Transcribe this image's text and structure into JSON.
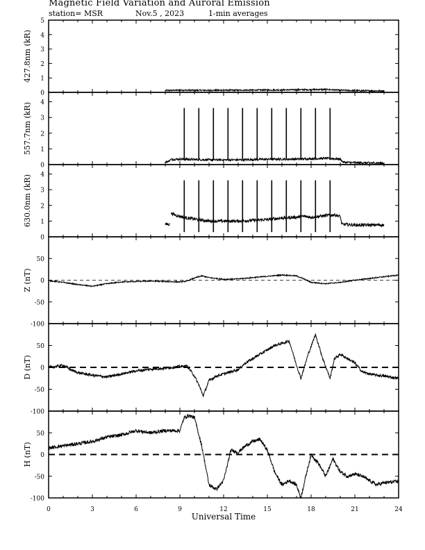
{
  "header": {
    "title": "Magnetic Field Variation and Auroral Emission",
    "station": "station= MSR",
    "date": "Nov.5  , 2023",
    "averaging": "1-min averages"
  },
  "chart_data": [
    {
      "type": "line",
      "id": "p4278",
      "ylabel": "427.8nm (kR)",
      "ylim": [
        0,
        5
      ],
      "yticks": [
        0,
        1,
        2,
        3,
        4,
        5
      ],
      "xlim": [
        0,
        24
      ],
      "grid": false,
      "segments": [
        {
          "x": [
            8.0,
            9.0,
            11.0,
            13.0,
            15.0,
            17.0,
            19.0,
            20.0,
            21.0,
            23.0
          ],
          "y": [
            0.13,
            0.15,
            0.14,
            0.15,
            0.16,
            0.18,
            0.2,
            0.15,
            0.12,
            0.1
          ],
          "noise": 0.05
        }
      ]
    },
    {
      "type": "line",
      "id": "p5577",
      "ylabel": "557.7nm (kR)",
      "ylim": [
        0,
        4.6
      ],
      "yticks": [
        0,
        1,
        2,
        3,
        4
      ],
      "xlim": [
        0,
        24
      ],
      "grid": false,
      "segments": [
        {
          "x": [
            8.0,
            8.2,
            8.4,
            9.0,
            11.0,
            13.0,
            15.0,
            17.0,
            19.0,
            20.0,
            20.2,
            21.0,
            23.0
          ],
          "y": [
            0.15,
            0.2,
            0.33,
            0.35,
            0.3,
            0.3,
            0.34,
            0.35,
            0.4,
            0.35,
            0.15,
            0.12,
            0.1
          ],
          "noise": 0.07
        }
      ],
      "spikes": {
        "x": [
          9.3,
          10.3,
          11.3,
          12.3,
          13.3,
          14.3,
          15.3,
          16.3,
          17.3,
          18.3,
          19.3
        ],
        "peak": 3.6
      }
    },
    {
      "type": "line",
      "id": "p6300",
      "ylabel": "630.0nm (kR)",
      "ylim": [
        0,
        4.6
      ],
      "yticks": [
        0,
        1,
        2,
        3,
        4
      ],
      "xlim": [
        0,
        24
      ],
      "grid": false,
      "segments": [
        {
          "x": [
            8.0,
            8.3
          ],
          "y": [
            0.8,
            0.8
          ],
          "noise": 0.1
        },
        {
          "x": [
            8.4,
            8.8,
            9.5,
            11.0,
            13.0,
            14.0,
            15.0,
            16.0,
            17.0,
            17.5,
            18.0,
            19.0,
            19.6,
            20.0,
            20.1,
            21.0,
            23.0
          ],
          "y": [
            1.5,
            1.35,
            1.2,
            1.0,
            1.0,
            1.05,
            1.1,
            1.2,
            1.25,
            1.3,
            1.25,
            1.35,
            1.4,
            1.3,
            0.8,
            0.75,
            0.75
          ],
          "noise": 0.1
        }
      ],
      "spikes": {
        "x": [
          9.3,
          10.3,
          11.3,
          12.3,
          13.3,
          14.3,
          15.3,
          16.3,
          17.3,
          18.3,
          19.3
        ],
        "peak": 3.6
      }
    },
    {
      "type": "line",
      "id": "pZ",
      "ylabel": "Z (nT)",
      "ylim": [
        -100,
        100
      ],
      "yticks": [
        -100,
        -50,
        0,
        50
      ],
      "xlim": [
        0,
        24
      ],
      "grid": false,
      "baseline": {
        "y": 0,
        "dash": "thin"
      },
      "segments": [
        {
          "x": [
            0,
            1.0,
            2.0,
            3.0,
            4.0,
            5.0,
            6.0,
            7.0,
            8.0,
            9.0,
            9.5,
            10.0,
            10.5,
            11.0,
            12.0,
            13.0,
            14.0,
            15.0,
            16.0,
            17.0,
            17.5,
            18.0,
            19.0,
            20.0,
            21.0,
            22.0,
            23.0,
            24.0
          ],
          "y": [
            -1,
            -5,
            -10,
            -14,
            -8,
            -4,
            -3,
            -2,
            -3,
            -4,
            -2,
            5,
            10,
            6,
            2,
            3,
            6,
            9,
            12,
            10,
            3,
            -5,
            -8,
            -5,
            0,
            4,
            8,
            12
          ],
          "noise": 1.2
        }
      ]
    },
    {
      "type": "line",
      "id": "pD",
      "ylabel": "D (nT)",
      "ylim": [
        -100,
        100
      ],
      "yticks": [
        -100,
        -50,
        0,
        50
      ],
      "xlim": [
        0,
        24
      ],
      "grid": false,
      "baseline": {
        "y": 0,
        "dash": "thick"
      },
      "segments": [
        {
          "x": [
            0,
            0.5,
            1.0,
            1.5,
            2.0,
            3.0,
            4.0,
            5.0,
            6.0,
            7.0,
            8.0,
            9.0,
            9.5,
            10.0,
            10.3,
            10.6,
            11.0,
            11.5,
            12.0,
            12.5,
            13.0,
            13.5,
            14.0,
            14.5,
            15.0,
            15.5,
            16.0,
            16.5,
            17.0,
            17.3,
            17.8,
            18.3,
            18.8,
            19.3,
            19.6,
            20.0,
            20.5,
            21.0,
            21.5,
            22.0,
            22.5,
            23.0,
            24.0
          ],
          "y": [
            0,
            2,
            5,
            -5,
            -12,
            -18,
            -22,
            -15,
            -8,
            -4,
            -2,
            2,
            3,
            -20,
            -40,
            -65,
            -30,
            -20,
            -15,
            -10,
            -5,
            10,
            20,
            30,
            40,
            50,
            55,
            60,
            5,
            -25,
            30,
            75,
            20,
            -25,
            20,
            30,
            20,
            10,
            -10,
            -15,
            -18,
            -20,
            -25
          ],
          "noise": 3
        }
      ]
    },
    {
      "type": "line",
      "id": "pH",
      "ylabel": "H (nT)",
      "ylim": [
        -100,
        100
      ],
      "yticks": [
        -100,
        -50,
        0,
        50
      ],
      "xlim": [
        0,
        24
      ],
      "grid": false,
      "baseline": {
        "y": 0,
        "dash": "thick"
      },
      "segments": [
        {
          "x": [
            0,
            1.0,
            2.0,
            3.0,
            4.0,
            5.0,
            6.0,
            7.0,
            8.0,
            9.0,
            9.3,
            9.6,
            10.0,
            10.5,
            11.0,
            11.5,
            12.0,
            12.5,
            13.0,
            13.5,
            14.0,
            14.5,
            15.0,
            15.5,
            16.0,
            16.5,
            17.0,
            17.3,
            17.6,
            18.0,
            18.5,
            19.0,
            19.5,
            20.0,
            20.5,
            21.0,
            21.5,
            22.0,
            22.5,
            23.0,
            24.0
          ],
          "y": [
            15,
            20,
            25,
            30,
            40,
            45,
            55,
            50,
            55,
            55,
            85,
            90,
            85,
            20,
            -70,
            -80,
            -60,
            10,
            5,
            20,
            30,
            35,
            10,
            -40,
            -70,
            -60,
            -70,
            -100,
            -55,
            0,
            -20,
            -50,
            -10,
            -40,
            -50,
            -45,
            -50,
            -60,
            -70,
            -65,
            -62
          ],
          "noise": 4
        }
      ]
    }
  ],
  "x_axis": {
    "ticks": [
      0,
      3,
      6,
      9,
      12,
      15,
      18,
      21,
      24
    ],
    "tick_labels": [
      "0",
      "3",
      "6",
      "9",
      "12",
      "15",
      "18",
      "21",
      "24"
    ],
    "label": "Universal Time"
  }
}
